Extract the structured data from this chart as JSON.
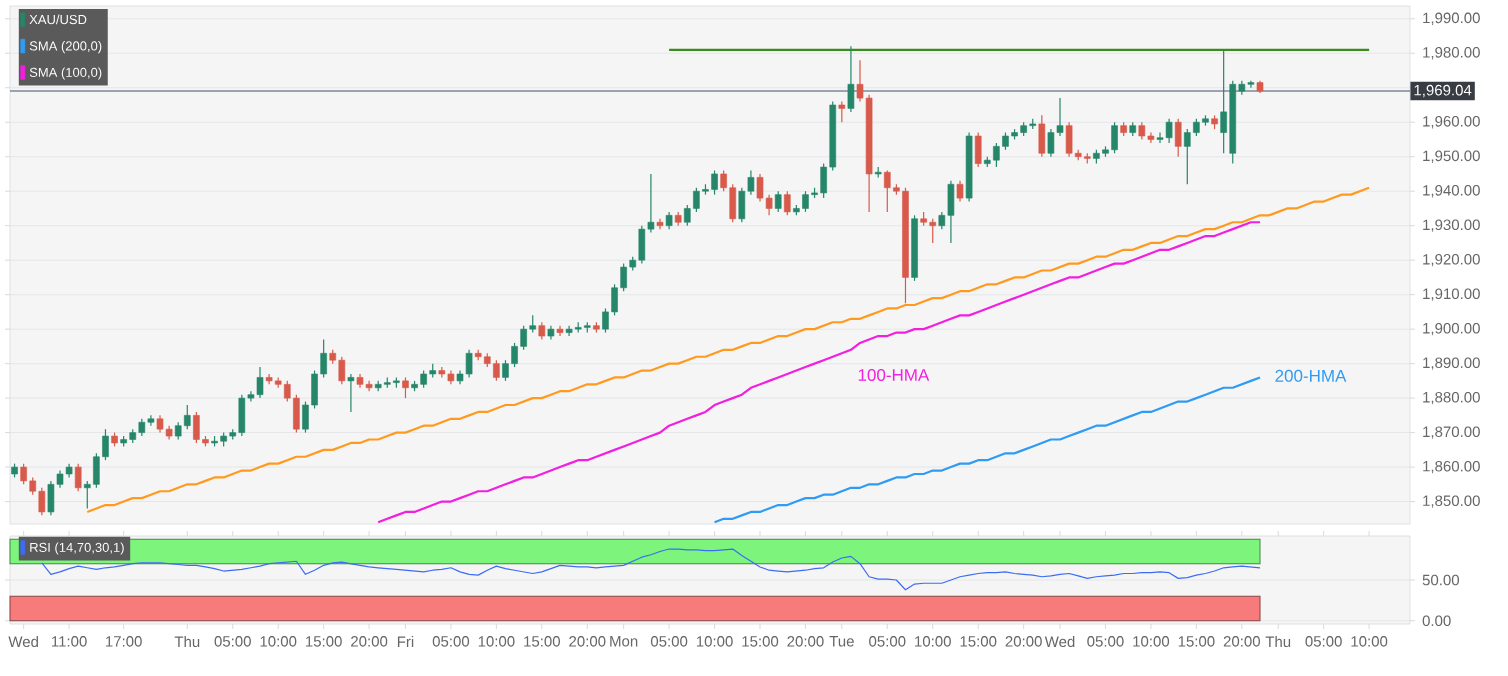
{
  "chart_data": [
    {
      "type": "candlestick",
      "ylim": [
        1843.5,
        1993.7
      ],
      "tick_labels": "y",
      "categories": [
        null,
        null,
        null,
        null,
        null,
        null,
        null,
        null,
        null,
        null,
        null,
        null,
        null,
        null,
        null,
        null,
        null,
        null,
        null,
        null,
        null,
        null,
        null,
        null,
        null,
        null,
        null,
        null,
        null,
        null,
        null,
        null,
        null,
        null,
        null,
        null,
        null,
        null,
        null,
        null,
        null,
        null,
        null,
        null,
        null,
        null,
        null,
        null,
        null,
        null,
        null,
        null,
        null,
        null,
        null,
        null,
        null,
        null,
        null,
        null,
        null,
        null,
        null,
        null,
        null,
        null,
        null,
        null,
        null,
        null,
        null,
        null,
        null,
        null,
        null,
        null,
        null,
        null,
        null,
        null,
        null,
        null,
        null,
        null,
        null,
        null,
        null,
        null,
        null,
        null,
        null,
        null,
        null,
        null,
        null,
        null,
        null,
        null,
        null,
        null,
        null,
        null,
        null,
        null,
        null,
        null,
        null,
        null,
        null,
        null,
        null,
        null,
        null,
        null,
        null,
        null,
        null,
        null,
        null,
        null,
        null,
        null,
        null,
        null,
        null,
        null,
        null,
        null,
        null,
        null,
        null,
        null,
        null,
        null,
        null,
        null,
        null,
        null,
        null,
        null,
        null,
        null,
        null,
        null,
        null,
        null,
        null,
        null,
        null,
        null,
        null,
        null,
        null,
        null
      ],
      "ref_lines": [
        {
          "axis": "y",
          "value": 1969.04,
          "label": "1,969.04",
          "color": "#7c8796"
        }
      ],
      "annotations": [
        "100-HMA",
        "200-HMA"
      ],
      "grid": "y",
      "legend": "top left",
      "yticks": [
        {
          "value": 1850,
          "label": "1,850.00"
        },
        {
          "value": 1860,
          "label": "1,860.00"
        },
        {
          "value": 1870,
          "label": "1,870.00"
        },
        {
          "value": 1880,
          "label": "1,880.00"
        },
        {
          "value": 1890,
          "label": "1,890.00"
        },
        {
          "value": 1900,
          "label": "1,900.00"
        },
        {
          "value": 1910,
          "label": "1,910.00"
        },
        {
          "value": 1920,
          "label": "1,920.00"
        },
        {
          "value": 1930,
          "label": "1,930.00"
        },
        {
          "value": 1940,
          "label": "1,940.00"
        },
        {
          "value": 1950,
          "label": "1,950.00"
        },
        {
          "value": 1960,
          "label": "1,960.00"
        },
        {
          "value": 1970,
          "label": null
        },
        {
          "value": 1980,
          "label": "1,980.00"
        },
        {
          "value": 1990,
          "label": "1,990.00"
        }
      ],
      "series": [
        {
          "name": "XAU/USD",
          "type": "candlestick",
          "ohlc": [
            [
              1858,
              1861,
              1857,
              1860
            ],
            [
              1860,
              1861,
              1855,
              1856
            ],
            [
              1856,
              1857,
              1852,
              1853
            ],
            [
              1853,
              1854,
              1846,
              1847
            ],
            [
              1847,
              1856,
              1846,
              1855
            ],
            [
              1855,
              1859,
              1854,
              1858
            ],
            [
              1858,
              1861,
              1857,
              1860
            ],
            [
              1860,
              1861,
              1853,
              1854
            ],
            [
              1854,
              1856,
              1848,
              1855
            ],
            [
              1855,
              1864,
              1854,
              1863
            ],
            [
              1863,
              1871,
              1862,
              1869
            ],
            [
              1869,
              1870,
              1866,
              1867
            ],
            [
              1867,
              1869,
              1866,
              1868
            ],
            [
              1868,
              1871,
              1867,
              1870
            ],
            [
              1870,
              1874,
              1869,
              1873
            ],
            [
              1873,
              1875,
              1872,
              1874
            ],
            [
              1874,
              1875,
              1870,
              1871
            ],
            [
              1871,
              1872,
              1868,
              1869
            ],
            [
              1869,
              1873,
              1868,
              1872
            ],
            [
              1872,
              1878,
              1871,
              1875
            ],
            [
              1875,
              1876,
              1867,
              1868
            ],
            [
              1868,
              1869,
              1866,
              1867
            ],
            [
              1867,
              1869,
              1866,
              1867.5
            ],
            [
              1867.5,
              1870,
              1866,
              1869
            ],
            [
              1869,
              1871,
              1868,
              1870
            ],
            [
              1870,
              1881,
              1869,
              1880
            ],
            [
              1880,
              1882,
              1879,
              1881
            ],
            [
              1881,
              1889,
              1880,
              1886
            ],
            [
              1886,
              1887,
              1884,
              1885
            ],
            [
              1885,
              1886,
              1883,
              1884
            ],
            [
              1884,
              1885,
              1879,
              1880
            ],
            [
              1880,
              1881,
              1870,
              1871
            ],
            [
              1871,
              1879,
              1870,
              1878
            ],
            [
              1878,
              1888,
              1877,
              1887
            ],
            [
              1887,
              1897,
              1886,
              1893
            ],
            [
              1893,
              1894,
              1890,
              1891
            ],
            [
              1891,
              1892,
              1884,
              1885
            ],
            [
              1885,
              1887,
              1876,
              1886
            ],
            [
              1886,
              1887,
              1883,
              1884
            ],
            [
              1884,
              1885,
              1882,
              1883
            ],
            [
              1883,
              1885,
              1882,
              1884
            ],
            [
              1884,
              1886,
              1883,
              1884.5
            ],
            [
              1884.5,
              1886,
              1883,
              1885
            ],
            [
              1885,
              1886,
              1880,
              1883
            ],
            [
              1883,
              1885,
              1882,
              1884
            ],
            [
              1884,
              1888,
              1883,
              1887
            ],
            [
              1887,
              1890,
              1886,
              1888
            ],
            [
              1888,
              1889,
              1886,
              1887
            ],
            [
              1887,
              1888,
              1884,
              1885
            ],
            [
              1885,
              1888,
              1884,
              1887
            ],
            [
              1887,
              1894,
              1886,
              1893
            ],
            [
              1893,
              1894,
              1891,
              1892
            ],
            [
              1892,
              1893,
              1889,
              1890
            ],
            [
              1890,
              1891,
              1885,
              1886
            ],
            [
              1886,
              1891,
              1885,
              1890
            ],
            [
              1890,
              1896,
              1889,
              1895
            ],
            [
              1895,
              1901,
              1894,
              1900
            ],
            [
              1900,
              1904,
              1899,
              1901
            ],
            [
              1901,
              1902,
              1897,
              1898
            ],
            [
              1898,
              1901,
              1897,
              1900
            ],
            [
              1900,
              1901,
              1898,
              1899
            ],
            [
              1899,
              1901,
              1898,
              1900
            ],
            [
              1900,
              1902,
              1899,
              1900.5
            ],
            [
              1900.5,
              1902,
              1899,
              1901
            ],
            [
              1901,
              1902,
              1899,
              1900
            ],
            [
              1900,
              1906,
              1899,
              1905
            ],
            [
              1905,
              1913,
              1904,
              1912
            ],
            [
              1912,
              1919,
              1911,
              1918
            ],
            [
              1918,
              1921,
              1917,
              1920
            ],
            [
              1920,
              1930,
              1919,
              1929
            ],
            [
              1929,
              1945,
              1928,
              1931
            ],
            [
              1931,
              1932,
              1929,
              1930
            ],
            [
              1930,
              1934,
              1929,
              1933
            ],
            [
              1933,
              1934,
              1930,
              1931
            ],
            [
              1931,
              1936,
              1930,
              1935
            ],
            [
              1935,
              1941,
              1934,
              1940
            ],
            [
              1940,
              1942,
              1939,
              1940.5
            ],
            [
              1940.5,
              1946,
              1939,
              1945
            ],
            [
              1945,
              1946,
              1940,
              1941
            ],
            [
              1941,
              1942,
              1931,
              1932
            ],
            [
              1932,
              1941,
              1931,
              1940
            ],
            [
              1940,
              1946,
              1939,
              1944
            ],
            [
              1944,
              1945,
              1937,
              1938
            ],
            [
              1938,
              1939,
              1933,
              1935
            ],
            [
              1935,
              1940,
              1934,
              1939
            ],
            [
              1939,
              1940,
              1933,
              1934
            ],
            [
              1934,
              1936,
              1933,
              1935
            ],
            [
              1935,
              1940,
              1934,
              1939
            ],
            [
              1939,
              1941,
              1938,
              1939.5
            ],
            [
              1939.5,
              1948,
              1938,
              1947
            ],
            [
              1947,
              1966,
              1946,
              1965
            ],
            [
              1965,
              1966,
              1960,
              1964
            ],
            [
              1964,
              1982,
              1963,
              1971
            ],
            [
              1971,
              1978,
              1966,
              1967
            ],
            [
              1967,
              1968,
              1934,
              1945
            ],
            [
              1945,
              1947,
              1944,
              1945.5
            ],
            [
              1945.5,
              1946,
              1934,
              1941
            ],
            [
              1941,
              1942,
              1939,
              1940
            ],
            [
              1940,
              1941,
              1907.5,
              1915
            ],
            [
              1915,
              1933,
              1914,
              1932
            ],
            [
              1932,
              1934,
              1930,
              1931
            ],
            [
              1931,
              1932,
              1925,
              1930
            ],
            [
              1930,
              1934,
              1929,
              1933
            ],
            [
              1933,
              1943,
              1925,
              1942
            ],
            [
              1942,
              1943,
              1937,
              1938
            ],
            [
              1938,
              1957,
              1937,
              1956
            ],
            [
              1956,
              1957,
              1947,
              1948
            ],
            [
              1948,
              1950,
              1947,
              1949
            ],
            [
              1949,
              1954,
              1947,
              1953
            ],
            [
              1953,
              1957,
              1952,
              1956
            ],
            [
              1956,
              1958,
              1955,
              1957
            ],
            [
              1957,
              1960,
              1956,
              1959
            ],
            [
              1959,
              1961,
              1958,
              1959.5
            ],
            [
              1959.5,
              1962,
              1950,
              1951
            ],
            [
              1951,
              1958,
              1950,
              1957
            ],
            [
              1957,
              1967,
              1956,
              1959
            ],
            [
              1959,
              1960,
              1950,
              1951
            ],
            [
              1951,
              1952,
              1949,
              1950
            ],
            [
              1950,
              1951,
              1948,
              1949.5
            ],
            [
              1949.5,
              1952,
              1948,
              1951
            ],
            [
              1951,
              1953,
              1950,
              1952
            ],
            [
              1952,
              1960,
              1951,
              1959
            ],
            [
              1959,
              1960,
              1956,
              1957
            ],
            [
              1957,
              1960,
              1956,
              1959
            ],
            [
              1959,
              1960,
              1955,
              1956
            ],
            [
              1956,
              1957,
              1954,
              1955
            ],
            [
              1955,
              1957,
              1954,
              1955.5
            ],
            [
              1955.5,
              1961,
              1954,
              1960
            ],
            [
              1960,
              1961,
              1950,
              1953
            ],
            [
              1953,
              1958,
              1942,
              1957
            ],
            [
              1957,
              1961,
              1956,
              1960
            ],
            [
              1960,
              1962,
              1959,
              1961
            ],
            [
              1961,
              1962,
              1958,
              1959.5
            ],
            [
              1957,
              1981,
              1951,
              1963
            ],
            [
              1951,
              1972,
              1948,
              1971
            ],
            [
              1969,
              1972,
              1968,
              1971
            ],
            [
              1971,
              1972,
              1970,
              1971.5
            ],
            [
              1971.5,
              1972,
              1968.5,
              1969.04
            ],
            null,
            null,
            null,
            null,
            null,
            null,
            null,
            null,
            null,
            null,
            null,
            null,
            null,
            null,
            null,
            null
          ],
          "colors": [
            "#26866a",
            "#d75a4b",
            "#d75a4b",
            "#d75a4b",
            "#26866a",
            "#26866a",
            "#26866a",
            "#d75a4b",
            "#26866a",
            "#26866a",
            "#26866a",
            "#d75a4b",
            "#26866a",
            "#26866a",
            "#26866a",
            "#26866a",
            "#d75a4b",
            "#d75a4b",
            "#26866a",
            "#26866a",
            "#d75a4b",
            "#d75a4b",
            "#26866a",
            "#26866a",
            "#26866a",
            "#26866a",
            "#26866a",
            "#26866a",
            "#d75a4b",
            "#d75a4b",
            "#d75a4b",
            "#d75a4b",
            "#26866a",
            "#26866a",
            "#26866a",
            "#d75a4b",
            "#d75a4b",
            "#26866a",
            "#d75a4b",
            "#d75a4b",
            "#26866a",
            "#26866a",
            "#26866a",
            "#d75a4b",
            "#26866a",
            "#26866a",
            "#26866a",
            "#d75a4b",
            "#d75a4b",
            "#26866a",
            "#26866a",
            "#d75a4b",
            "#d75a4b",
            "#d75a4b",
            "#26866a",
            "#26866a",
            "#26866a",
            "#26866a",
            "#d75a4b",
            "#26866a",
            "#d75a4b",
            "#26866a",
            "#26866a",
            "#26866a",
            "#d75a4b",
            "#26866a",
            "#26866a",
            "#26866a",
            "#26866a",
            "#26866a",
            "#26866a",
            "#d75a4b",
            "#26866a",
            "#d75a4b",
            "#26866a",
            "#26866a",
            "#26866a",
            "#26866a",
            "#d75a4b",
            "#d75a4b",
            "#26866a",
            "#26866a",
            "#d75a4b",
            "#d75a4b",
            "#26866a",
            "#d75a4b",
            "#26866a",
            "#26866a",
            "#26866a",
            "#26866a",
            "#26866a",
            "#d75a4b",
            "#26866a",
            "#d75a4b",
            "#d75a4b",
            "#26866a",
            "#d75a4b",
            "#d75a4b",
            "#d75a4b",
            "#26866a",
            "#d75a4b",
            "#d75a4b",
            "#26866a",
            "#26866a",
            "#d75a4b",
            "#26866a",
            "#d75a4b",
            "#26866a",
            "#26866a",
            "#26866a",
            "#26866a",
            "#26866a",
            "#26866a",
            "#d75a4b",
            "#26866a",
            "#26866a",
            "#d75a4b",
            "#d75a4b",
            "#d75a4b",
            "#26866a",
            "#26866a",
            "#26866a",
            "#d75a4b",
            "#26866a",
            "#d75a4b",
            "#d75a4b",
            "#26866a",
            "#26866a",
            "#d75a4b",
            "#26866a",
            "#26866a",
            "#26866a",
            "#d75a4b",
            "#26866a",
            "#26866a",
            "#26866a",
            "#26866a",
            "#d75a4b",
            null,
            null,
            null,
            null,
            null,
            null,
            null,
            null,
            null,
            null,
            null,
            null,
            null,
            null,
            null,
            null
          ]
        },
        {
          "name": "SMA (200,0)",
          "type": "line",
          "color": "#2f9bf2",
          "values": [
            null,
            null,
            null,
            null,
            null,
            null,
            null,
            null,
            null,
            null,
            null,
            null,
            null,
            null,
            null,
            null,
            null,
            null,
            null,
            null,
            null,
            null,
            null,
            null,
            null,
            null,
            null,
            null,
            null,
            null,
            null,
            null,
            null,
            null,
            null,
            null,
            null,
            null,
            null,
            null,
            null,
            null,
            null,
            null,
            null,
            null,
            null,
            null,
            null,
            null,
            null,
            null,
            null,
            null,
            null,
            null,
            null,
            null,
            null,
            null,
            null,
            null,
            null,
            null,
            null,
            null,
            null,
            null,
            null,
            null,
            null,
            null,
            null,
            null,
            null,
            null,
            null,
            1844,
            1845,
            1845,
            1846,
            1847,
            1847,
            1848,
            1849,
            1849,
            1850,
            1851,
            1851,
            1852,
            1852,
            1853,
            1854,
            1854,
            1855,
            1855,
            1856,
            1857,
            1857,
            1858,
            1858,
            1859,
            1859,
            1860,
            1861,
            1861,
            1862,
            1862,
            1863,
            1864,
            1864,
            1865,
            1866,
            1867,
            1868,
            1868,
            1869,
            1870,
            1871,
            1872,
            1872,
            1873,
            1874,
            1875,
            1876,
            1876,
            1877,
            1878,
            1879,
            1879,
            1880,
            1881,
            1882,
            1883,
            1883,
            1884,
            1885,
            1886,
            null,
            null,
            null,
            null,
            null,
            null,
            null,
            null,
            null,
            null,
            null,
            null,
            null,
            null,
            null,
            null
          ]
        },
        {
          "name": "SMA (100,0)",
          "type": "line",
          "color": "#f21ee0",
          "values": [
            null,
            null,
            null,
            null,
            null,
            null,
            null,
            null,
            null,
            null,
            null,
            null,
            null,
            null,
            null,
            null,
            null,
            null,
            null,
            null,
            null,
            null,
            null,
            null,
            null,
            null,
            null,
            null,
            null,
            null,
            null,
            null,
            null,
            null,
            null,
            null,
            null,
            null,
            null,
            null,
            1844,
            1845,
            1846,
            1847,
            1847,
            1848,
            1849,
            1850,
            1850,
            1851,
            1852,
            1853,
            1853,
            1854,
            1855,
            1856,
            1857,
            1857,
            1858,
            1859,
            1860,
            1861,
            1862,
            1862,
            1863,
            1864,
            1865,
            1866,
            1867,
            1868,
            1869,
            1870,
            1872,
            1873,
            1874,
            1875,
            1876,
            1878,
            1879,
            1880,
            1881,
            1883,
            1884,
            1885,
            1886,
            1887,
            1888,
            1889,
            1890,
            1891,
            1892,
            1893,
            1894,
            1896,
            1897,
            1898,
            1898,
            1899,
            1899,
            1900,
            1900,
            1901,
            1902,
            1903,
            1904,
            1904,
            1905,
            1906,
            1907,
            1908,
            1909,
            1910,
            1911,
            1912,
            1913,
            1914,
            1915,
            1915,
            1916,
            1917,
            1918,
            1919,
            1919,
            1920,
            1921,
            1922,
            1923,
            1923,
            1924,
            1925,
            1926,
            1927,
            1927,
            1928,
            1929,
            1930,
            1931,
            1931,
            null,
            null,
            null,
            null,
            null,
            null,
            null,
            null,
            null,
            null,
            null,
            null,
            null,
            null,
            null,
            null
          ]
        },
        {
          "type": "line",
          "color": "#ff9a1f",
          "values": [
            null,
            null,
            null,
            null,
            null,
            null,
            null,
            null,
            1847,
            1848,
            1849,
            1849,
            1850,
            1851,
            1851,
            1852,
            1853,
            1853,
            1854,
            1855,
            1855,
            1856,
            1857,
            1857,
            1858,
            1859,
            1859,
            1860,
            1861,
            1861,
            1862,
            1863,
            1863,
            1864,
            1865,
            1865,
            1866,
            1867,
            1867,
            1868,
            1868,
            1869,
            1870,
            1870,
            1871,
            1872,
            1872,
            1873,
            1874,
            1874,
            1875,
            1876,
            1876,
            1877,
            1878,
            1878,
            1879,
            1880,
            1880,
            1881,
            1882,
            1882,
            1883,
            1884,
            1884,
            1885,
            1886,
            1886,
            1887,
            1888,
            1888,
            1889,
            1890,
            1890,
            1891,
            1892,
            1892,
            1893,
            1894,
            1894,
            1895,
            1896,
            1896,
            1897,
            1898,
            1898,
            1899,
            1900,
            1900,
            1901,
            1902,
            1902,
            1903,
            1903,
            1904,
            1905,
            1906,
            1906,
            1907,
            1907,
            1908,
            1909,
            1909,
            1910,
            1911,
            1911,
            1912,
            1913,
            1913,
            1914,
            1915,
            1915,
            1916,
            1917,
            1917,
            1918,
            1919,
            1919,
            1920,
            1921,
            1921,
            1922,
            1923,
            1923,
            1924,
            1925,
            1925,
            1926,
            1927,
            1927,
            1928,
            1929,
            1929,
            1930,
            1931,
            1931,
            1932,
            1933,
            1933,
            1934,
            1935,
            1935,
            1936,
            1937,
            1937,
            1938,
            1939,
            1939,
            1940,
            1941,
            null,
            null,
            null,
            null
          ]
        },
        {
          "type": "line",
          "color": "#3a8a1c",
          "values": [
            null,
            null,
            null,
            null,
            null,
            null,
            null,
            null,
            null,
            null,
            null,
            null,
            null,
            null,
            null,
            null,
            null,
            null,
            null,
            null,
            null,
            null,
            null,
            null,
            null,
            null,
            null,
            null,
            null,
            null,
            null,
            null,
            null,
            null,
            null,
            null,
            null,
            null,
            null,
            null,
            null,
            null,
            null,
            null,
            null,
            null,
            null,
            null,
            null,
            null,
            null,
            null,
            null,
            null,
            null,
            null,
            null,
            null,
            null,
            null,
            null,
            null,
            null,
            null,
            null,
            null,
            null,
            null,
            null,
            null,
            null,
            null,
            1981,
            1981,
            1981,
            1981,
            1981,
            1981,
            1981,
            1981,
            1981,
            1981,
            1981,
            1981,
            1981,
            1981,
            1981,
            1981,
            1981,
            1981,
            1981,
            1981,
            1981,
            1981,
            1981,
            1981,
            1981,
            1981,
            1981,
            1981,
            1981,
            1981,
            1981,
            1981,
            1981,
            1981,
            1981,
            1981,
            1981,
            1981,
            1981,
            1981,
            1981,
            1981,
            1981,
            1981,
            1981,
            1981,
            1981,
            1981,
            1981,
            1981,
            1981,
            1981,
            1981,
            1981,
            1981,
            1981,
            1981,
            1981,
            1981,
            1981,
            1981,
            1981,
            1981,
            1981,
            1981,
            1981,
            1981,
            1981,
            1981,
            1981,
            1981,
            1981,
            1981,
            1981,
            1981,
            1981,
            1981,
            1981,
            null,
            null,
            null,
            null
          ]
        }
      ]
    },
    {
      "type": "line",
      "ylim": [
        -4,
        104
      ],
      "categories": [
        null,
        "Wed",
        null,
        null,
        null,
        null,
        "11:00",
        null,
        null,
        null,
        null,
        null,
        "17:00",
        null,
        null,
        null,
        null,
        null,
        null,
        "Thu",
        null,
        null,
        null,
        null,
        "05:00",
        null,
        null,
        null,
        null,
        "10:00",
        null,
        null,
        null,
        null,
        "15:00",
        null,
        null,
        null,
        null,
        "20:00",
        null,
        null,
        null,
        "Fri",
        null,
        null,
        null,
        null,
        "05:00",
        null,
        null,
        null,
        null,
        "10:00",
        null,
        null,
        null,
        null,
        "15:00",
        null,
        null,
        null,
        null,
        "20:00",
        null,
        null,
        null,
        "Mon",
        null,
        null,
        null,
        null,
        "05:00",
        null,
        null,
        null,
        null,
        "10:00",
        null,
        null,
        null,
        null,
        "15:00",
        null,
        null,
        null,
        null,
        "20:00",
        null,
        null,
        null,
        "Tue",
        null,
        null,
        null,
        null,
        "05:00",
        null,
        null,
        null,
        null,
        "10:00",
        null,
        null,
        null,
        null,
        "15:00",
        null,
        null,
        null,
        null,
        "20:00",
        null,
        null,
        null,
        "Wed",
        null,
        null,
        null,
        null,
        "05:00",
        null,
        null,
        null,
        null,
        "10:00",
        null,
        null,
        null,
        null,
        "15:00",
        null,
        null,
        null,
        null,
        "20:00",
        null,
        null,
        null,
        "Thu",
        null,
        null,
        null,
        null,
        "05:00",
        null,
        null,
        null,
        null,
        "10:00",
        null,
        null,
        null,
        null
      ],
      "yticks": [
        {
          "value": 0,
          "label": "0.00"
        },
        {
          "value": 50,
          "label": "50.00"
        }
      ],
      "grid": "y",
      "legend": "top left",
      "bands": [
        {
          "axis": "y",
          "from": 70,
          "to": 100,
          "color": "#7df57d"
        },
        {
          "axis": "y",
          "from": 0,
          "to": 30,
          "color": "#f77b7b"
        }
      ],
      "series": [
        {
          "name": "RSI (14,70,30,1)",
          "type": "line",
          "color": "#3b6cf5",
          "values": [
            null,
            null,
            null,
            71,
            57,
            60,
            64,
            67,
            65,
            63,
            65,
            66,
            68,
            70,
            71,
            71,
            71,
            70,
            69,
            68,
            68,
            66,
            64,
            61,
            62,
            63,
            65,
            67,
            70,
            71,
            72,
            73,
            57,
            62,
            68,
            71,
            72,
            70,
            68,
            66,
            65,
            64,
            63,
            62,
            61,
            60,
            62,
            63,
            65,
            60,
            57,
            56,
            62,
            67,
            64,
            62,
            60,
            58,
            60,
            64,
            68,
            67,
            66,
            66,
            65,
            66,
            67,
            68,
            73,
            78,
            81,
            85,
            88,
            88,
            87,
            87,
            86,
            86,
            87,
            88,
            80,
            73,
            66,
            62,
            61,
            60,
            61,
            62,
            64,
            65,
            72,
            77,
            79,
            70,
            54,
            51,
            51,
            50,
            38,
            45,
            46,
            46,
            46,
            50,
            54,
            56,
            58,
            59,
            59,
            60,
            58,
            57,
            56,
            54,
            55,
            57,
            58,
            55,
            52,
            54,
            55,
            56,
            58,
            58,
            59,
            59,
            60,
            59,
            52,
            53,
            56,
            58,
            61,
            65,
            66,
            67,
            66,
            65,
            null,
            null,
            null,
            null,
            null,
            null,
            null,
            null,
            null,
            null,
            null,
            null,
            null,
            null,
            null,
            null
          ]
        }
      ]
    }
  ]
}
